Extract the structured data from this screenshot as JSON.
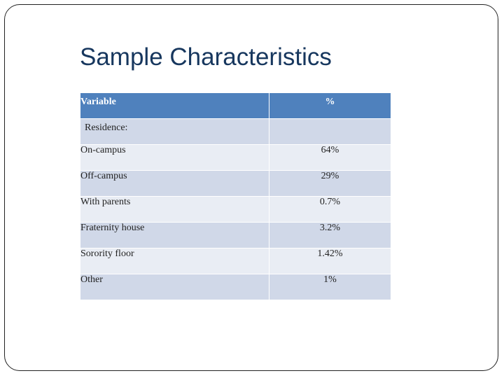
{
  "slide": {
    "title": "Sample Characteristics"
  },
  "table": {
    "headers": {
      "variable": "Variable",
      "percent": "%"
    },
    "group_label": "Residence:",
    "rows": [
      {
        "label": "On-campus",
        "value": "64%"
      },
      {
        "label": "Off-campus",
        "value": "29%"
      },
      {
        "label": "With parents",
        "value": "0.7%"
      },
      {
        "label": "Fraternity house",
        "value": "3.2%"
      },
      {
        "label": "Sorority floor",
        "value": "1.42%"
      },
      {
        "label": "Other",
        "value": "1%"
      }
    ]
  },
  "colors": {
    "title": "#17375e",
    "header_fill": "#4f81bd",
    "row_dark": "#d0d8e8",
    "row_light": "#e9edf4",
    "frame_border": "#222222"
  }
}
